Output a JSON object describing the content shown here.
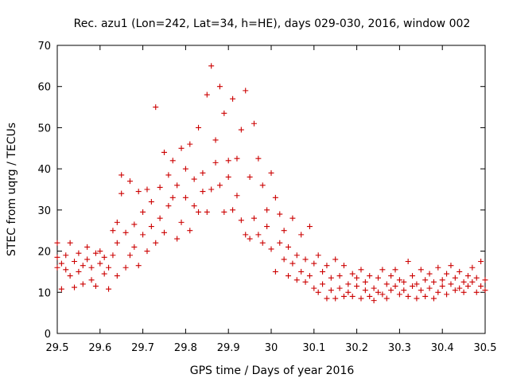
{
  "chart_data": {
    "type": "scatter",
    "title": "Rec. azu1 (Lon=242, Lat=34, h=HE), days 029-030, 2016, window 002",
    "xlabel": "GPS time / Days of year 2016",
    "ylabel": "STEC from uqrg / TECUs",
    "xlim": [
      29.5,
      30.5
    ],
    "ylim": [
      0,
      70
    ],
    "xticks": [
      "29.5",
      "29.6",
      "29.7",
      "29.8",
      "29.9",
      "30",
      "30.1",
      "30.2",
      "30.3",
      "30.4",
      "30.5"
    ],
    "yticks": [
      "0",
      "10",
      "20",
      "30",
      "40",
      "50",
      "60",
      "70"
    ],
    "marker": "+",
    "color": "#cc0000",
    "series": [
      {
        "name": "STEC",
        "points": [
          [
            29.5,
            16.0
          ],
          [
            29.5,
            18.5
          ],
          [
            29.5,
            22.0
          ],
          [
            29.51,
            17.0
          ],
          [
            29.51,
            10.8
          ],
          [
            29.52,
            15.5
          ],
          [
            29.52,
            19.0
          ],
          [
            29.53,
            22.0
          ],
          [
            29.53,
            14.0
          ],
          [
            29.54,
            17.5
          ],
          [
            29.54,
            11.2
          ],
          [
            29.55,
            19.5
          ],
          [
            29.55,
            15.0
          ],
          [
            29.56,
            16.5
          ],
          [
            29.56,
            12.0
          ],
          [
            29.57,
            18.0
          ],
          [
            29.57,
            21.0
          ],
          [
            29.58,
            16.0
          ],
          [
            29.58,
            13.0
          ],
          [
            29.59,
            19.5
          ],
          [
            29.59,
            11.5
          ],
          [
            29.6,
            17.0
          ],
          [
            29.6,
            20.0
          ],
          [
            29.61,
            14.5
          ],
          [
            29.61,
            18.5
          ],
          [
            29.62,
            10.8
          ],
          [
            29.62,
            16.0
          ],
          [
            29.63,
            19.0
          ],
          [
            29.63,
            25.0
          ],
          [
            29.64,
            14.0
          ],
          [
            29.64,
            22.0
          ],
          [
            29.64,
            27.0
          ],
          [
            29.65,
            38.5
          ],
          [
            29.65,
            34.0
          ],
          [
            29.66,
            16.0
          ],
          [
            29.66,
            24.5
          ],
          [
            29.67,
            19.0
          ],
          [
            29.67,
            37.0
          ],
          [
            29.68,
            26.5
          ],
          [
            29.68,
            21.0
          ],
          [
            29.69,
            34.5
          ],
          [
            29.69,
            16.5
          ],
          [
            29.7,
            24.0
          ],
          [
            29.7,
            29.5
          ],
          [
            29.71,
            20.0
          ],
          [
            29.71,
            35.0
          ],
          [
            29.72,
            26.0
          ],
          [
            29.72,
            32.0
          ],
          [
            29.73,
            55.0
          ],
          [
            29.73,
            22.0
          ],
          [
            29.74,
            35.5
          ],
          [
            29.74,
            28.0
          ],
          [
            29.75,
            44.0
          ],
          [
            29.75,
            24.5
          ],
          [
            29.76,
            38.5
          ],
          [
            29.76,
            31.0
          ],
          [
            29.77,
            42.0
          ],
          [
            29.77,
            33.0
          ],
          [
            29.78,
            23.0
          ],
          [
            29.78,
            36.0
          ],
          [
            29.79,
            45.0
          ],
          [
            29.79,
            27.0
          ],
          [
            29.8,
            33.0
          ],
          [
            29.8,
            40.0
          ],
          [
            29.81,
            25.0
          ],
          [
            29.81,
            46.0
          ],
          [
            29.82,
            31.0
          ],
          [
            29.82,
            37.5
          ],
          [
            29.83,
            29.5
          ],
          [
            29.83,
            50.0
          ],
          [
            29.84,
            39.0
          ],
          [
            29.84,
            34.5
          ],
          [
            29.85,
            29.5
          ],
          [
            29.85,
            58.0
          ],
          [
            29.86,
            65.0
          ],
          [
            29.86,
            35.0
          ],
          [
            29.87,
            47.0
          ],
          [
            29.87,
            41.5
          ],
          [
            29.88,
            60.0
          ],
          [
            29.88,
            36.0
          ],
          [
            29.89,
            29.5
          ],
          [
            29.89,
            53.5
          ],
          [
            29.9,
            42.0
          ],
          [
            29.9,
            38.0
          ],
          [
            29.91,
            30.0
          ],
          [
            29.91,
            57.0
          ],
          [
            29.92,
            42.5
          ],
          [
            29.92,
            33.5
          ],
          [
            29.93,
            49.5
          ],
          [
            29.93,
            27.5
          ],
          [
            29.94,
            59.0
          ],
          [
            29.94,
            24.0
          ],
          [
            29.95,
            38.0
          ],
          [
            29.95,
            23.0
          ],
          [
            29.96,
            51.0
          ],
          [
            29.96,
            28.0
          ],
          [
            29.97,
            42.5
          ],
          [
            29.97,
            24.0
          ],
          [
            29.98,
            36.0
          ],
          [
            29.98,
            22.0
          ],
          [
            29.99,
            30.0
          ],
          [
            29.99,
            26.0
          ],
          [
            30.0,
            39.0
          ],
          [
            30.0,
            20.5
          ],
          [
            30.01,
            33.0
          ],
          [
            30.01,
            15.0
          ],
          [
            30.02,
            29.0
          ],
          [
            30.02,
            22.0
          ],
          [
            30.03,
            18.0
          ],
          [
            30.03,
            25.0
          ],
          [
            30.04,
            14.0
          ],
          [
            30.04,
            21.0
          ],
          [
            30.05,
            17.0
          ],
          [
            30.05,
            28.0
          ],
          [
            30.06,
            13.0
          ],
          [
            30.06,
            19.0
          ],
          [
            30.07,
            24.0
          ],
          [
            30.07,
            15.0
          ],
          [
            30.08,
            12.5
          ],
          [
            30.08,
            18.0
          ],
          [
            30.09,
            26.0
          ],
          [
            30.09,
            14.0
          ],
          [
            30.1,
            11.0
          ],
          [
            30.1,
            17.0
          ],
          [
            30.11,
            19.0
          ],
          [
            30.11,
            10.0
          ],
          [
            30.12,
            15.0
          ],
          [
            30.12,
            12.0
          ],
          [
            30.13,
            8.5
          ],
          [
            30.13,
            16.5
          ],
          [
            30.14,
            10.5
          ],
          [
            30.14,
            13.5
          ],
          [
            30.15,
            8.5
          ],
          [
            30.15,
            18.0
          ],
          [
            30.16,
            11.0
          ],
          [
            30.16,
            14.0
          ],
          [
            30.17,
            9.0
          ],
          [
            30.17,
            16.5
          ],
          [
            30.18,
            12.0
          ],
          [
            30.18,
            10.0
          ],
          [
            30.19,
            14.5
          ],
          [
            30.19,
            9.0
          ],
          [
            30.2,
            11.5
          ],
          [
            30.2,
            13.5
          ],
          [
            30.21,
            8.5
          ],
          [
            30.21,
            15.5
          ],
          [
            30.22,
            10.5
          ],
          [
            30.22,
            12.5
          ],
          [
            30.23,
            9.0
          ],
          [
            30.23,
            14.0
          ],
          [
            30.24,
            11.0
          ],
          [
            30.24,
            8.0
          ],
          [
            30.25,
            13.5
          ],
          [
            30.25,
            10.0
          ],
          [
            30.26,
            15.5
          ],
          [
            30.26,
            9.5
          ],
          [
            30.27,
            12.0
          ],
          [
            30.27,
            8.5
          ],
          [
            30.28,
            14.0
          ],
          [
            30.28,
            10.5
          ],
          [
            30.29,
            11.5
          ],
          [
            30.29,
            15.5
          ],
          [
            30.3,
            9.5
          ],
          [
            30.3,
            13.0
          ],
          [
            30.31,
            10.5
          ],
          [
            30.31,
            12.5
          ],
          [
            30.32,
            17.5
          ],
          [
            30.32,
            9.0
          ],
          [
            30.33,
            11.5
          ],
          [
            30.33,
            14.0
          ],
          [
            30.34,
            8.5
          ],
          [
            30.34,
            12.0
          ],
          [
            30.35,
            15.5
          ],
          [
            30.35,
            10.5
          ],
          [
            30.36,
            13.0
          ],
          [
            30.36,
            9.0
          ],
          [
            30.37,
            14.5
          ],
          [
            30.37,
            11.0
          ],
          [
            30.38,
            8.5
          ],
          [
            30.38,
            12.5
          ],
          [
            30.39,
            16.0
          ],
          [
            30.39,
            10.0
          ],
          [
            30.4,
            13.0
          ],
          [
            30.4,
            11.5
          ],
          [
            30.41,
            9.5
          ],
          [
            30.41,
            14.5
          ],
          [
            30.42,
            12.0
          ],
          [
            30.42,
            16.5
          ],
          [
            30.43,
            10.5
          ],
          [
            30.43,
            13.5
          ],
          [
            30.44,
            11.0
          ],
          [
            30.44,
            15.0
          ],
          [
            30.45,
            12.5
          ],
          [
            30.45,
            10.0
          ],
          [
            30.46,
            14.0
          ],
          [
            30.46,
            11.5
          ],
          [
            30.47,
            12.5
          ],
          [
            30.47,
            16.0
          ],
          [
            30.48,
            10.0
          ],
          [
            30.48,
            13.5
          ],
          [
            30.49,
            11.5
          ],
          [
            30.49,
            17.5
          ],
          [
            30.5,
            10.5
          ],
          [
            30.5,
            13.0
          ]
        ]
      }
    ]
  }
}
